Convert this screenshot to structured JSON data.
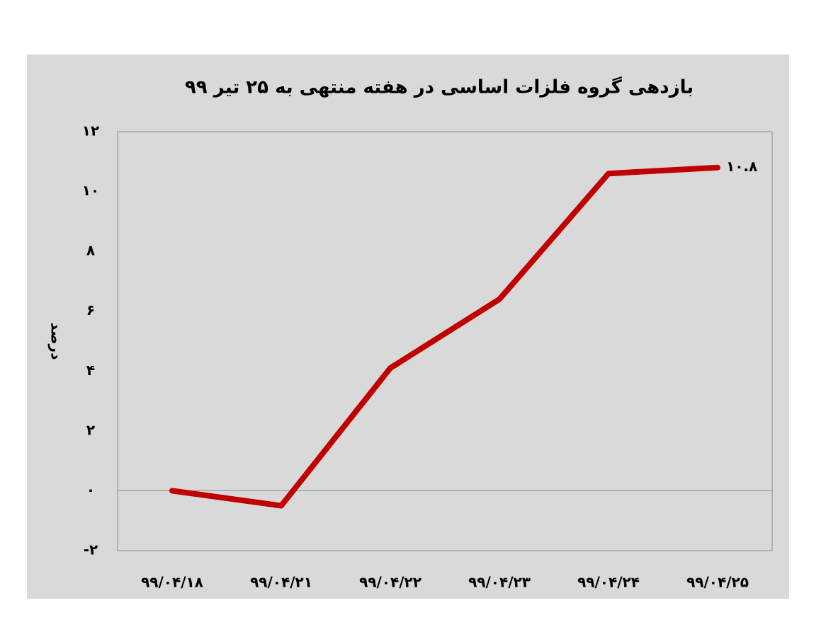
{
  "chart_data": {
    "type": "line",
    "title": "بازدهی گروه فلزات اساسی در هفته منتهی به ۲۵ تیر ۹۹",
    "y_label": "درصد",
    "categories": [
      "۹۹/۰۴/۱۸",
      "۹۹/۰۴/۲۱",
      "۹۹/۰۴/۲۲",
      "۹۹/۰۴/۲۳",
      "۹۹/۰۴/۲۴",
      "۹۹/۰۴/۲۵"
    ],
    "series": [
      {
        "name": "بازدهی",
        "color": "#c00000",
        "values": [
          0,
          -0.5,
          4.1,
          6.4,
          10.6,
          10.8
        ],
        "value_labels": [
          null,
          null,
          null,
          null,
          null,
          "۱۰.۸"
        ]
      }
    ],
    "ylim": [
      -2,
      12
    ],
    "yticks": [
      {
        "value": -2,
        "label": "-۲"
      },
      {
        "value": 0,
        "label": "۰"
      },
      {
        "value": 2,
        "label": "۲"
      },
      {
        "value": 4,
        "label": "۴"
      },
      {
        "value": 6,
        "label": "۶"
      },
      {
        "value": 8,
        "label": "۸"
      },
      {
        "value": 10,
        "label": "۱۰"
      },
      {
        "value": 12,
        "label": "۱۲"
      }
    ],
    "grid": false
  }
}
